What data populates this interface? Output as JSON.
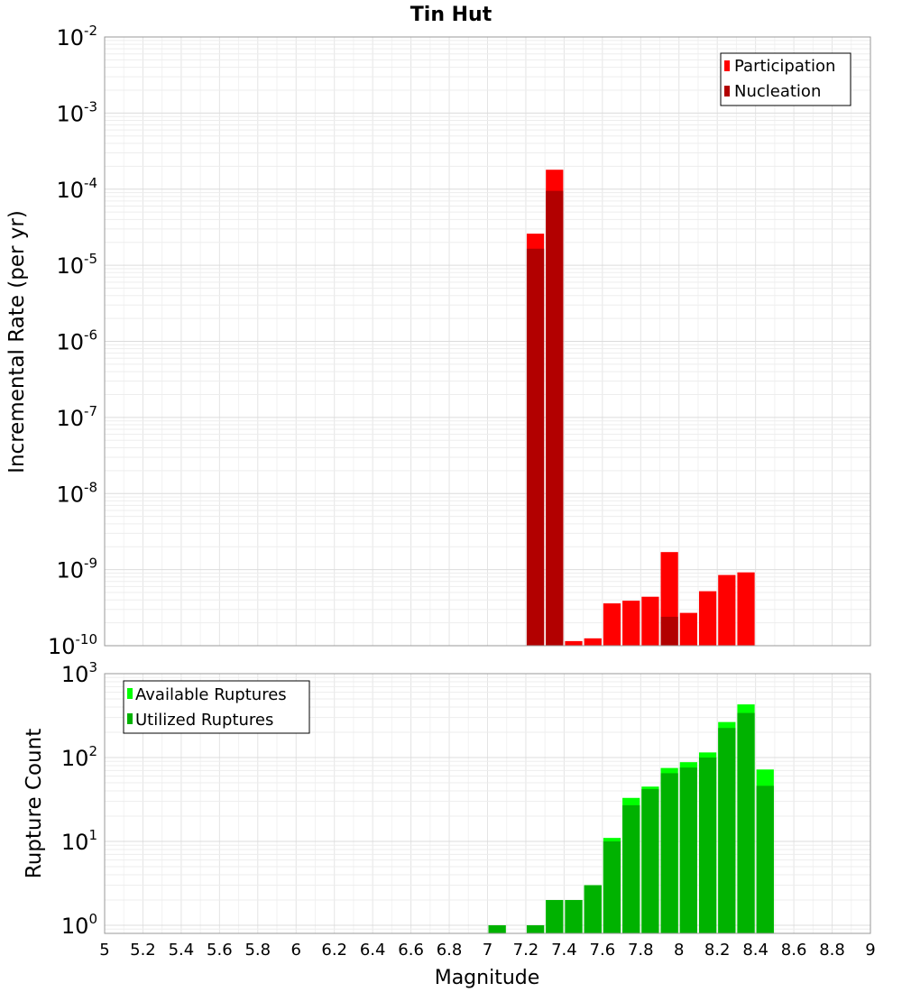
{
  "title": "Tin Hut",
  "xlabel": "Magnitude",
  "x_ticks": [
    "5",
    "5.2",
    "5.4",
    "5.6",
    "5.8",
    "6",
    "6.2",
    "6.4",
    "6.6",
    "6.8",
    "7",
    "7.2",
    "7.4",
    "7.6",
    "7.8",
    "8",
    "8.2",
    "8.4",
    "8.6",
    "8.8",
    "9"
  ],
  "chart_data": [
    {
      "type": "bar",
      "title": "Tin Hut",
      "xlabel": "Magnitude",
      "ylabel": "Incremental Rate (per yr)",
      "yscale": "log",
      "xlim": [
        5,
        9
      ],
      "ylim": [
        1e-10,
        0.01
      ],
      "ytick_exponents": [
        -2,
        -3,
        -4,
        -5,
        -6,
        -7,
        -8,
        -9,
        -10
      ],
      "grid": true,
      "legend_position": "top-right",
      "colors": {
        "Participation": "#ff0000",
        "Nucleation": "#b20000"
      },
      "series": [
        {
          "name": "Participation",
          "color": "#ff0000",
          "points": [
            [
              7.25,
              2.6e-05
            ],
            [
              7.35,
              0.00018
            ],
            [
              7.45,
              1.15e-10
            ],
            [
              7.55,
              1.25e-10
            ],
            [
              7.65,
              3.6e-10
            ],
            [
              7.75,
              3.9e-10
            ],
            [
              7.85,
              4.4e-10
            ],
            [
              7.95,
              1.7e-09
            ],
            [
              8.05,
              2.7e-10
            ],
            [
              8.15,
              5.2e-10
            ],
            [
              8.25,
              8.5e-10
            ],
            [
              8.35,
              9.2e-10
            ]
          ]
        },
        {
          "name": "Nucleation",
          "color": "#b20000",
          "points": [
            [
              7.25,
              1.65e-05
            ],
            [
              7.35,
              9.5e-05
            ],
            [
              7.95,
              2.4e-10
            ]
          ]
        }
      ]
    },
    {
      "type": "bar",
      "xlabel": "Magnitude",
      "ylabel": "Rupture Count",
      "yscale": "log",
      "xlim": [
        5,
        9
      ],
      "ylim": [
        0.8,
        1000
      ],
      "ytick_exponents": [
        3,
        2,
        1,
        0
      ],
      "grid": true,
      "legend_position": "top-left",
      "colors": {
        "Available Ruptures": "#00ff00",
        "Utilized Ruptures": "#00b200"
      },
      "series": [
        {
          "name": "Available Ruptures",
          "color": "#00ff00",
          "points": [
            [
              7.05,
              1
            ],
            [
              7.25,
              1
            ],
            [
              7.35,
              2
            ],
            [
              7.45,
              2
            ],
            [
              7.55,
              3
            ],
            [
              7.65,
              11
            ],
            [
              7.75,
              33
            ],
            [
              7.85,
              45
            ],
            [
              7.95,
              75
            ],
            [
              8.05,
              88
            ],
            [
              8.15,
              115
            ],
            [
              8.25,
              265
            ],
            [
              8.35,
              430
            ],
            [
              8.45,
              72
            ]
          ]
        },
        {
          "name": "Utilized Ruptures",
          "color": "#00b200",
          "points": [
            [
              7.05,
              1
            ],
            [
              7.25,
              1
            ],
            [
              7.35,
              2
            ],
            [
              7.45,
              2
            ],
            [
              7.55,
              3
            ],
            [
              7.65,
              10
            ],
            [
              7.75,
              27
            ],
            [
              7.85,
              42
            ],
            [
              7.95,
              65
            ],
            [
              8.05,
              76
            ],
            [
              8.15,
              100
            ],
            [
              8.25,
              225
            ],
            [
              8.35,
              340
            ],
            [
              8.45,
              46
            ]
          ]
        }
      ]
    }
  ]
}
